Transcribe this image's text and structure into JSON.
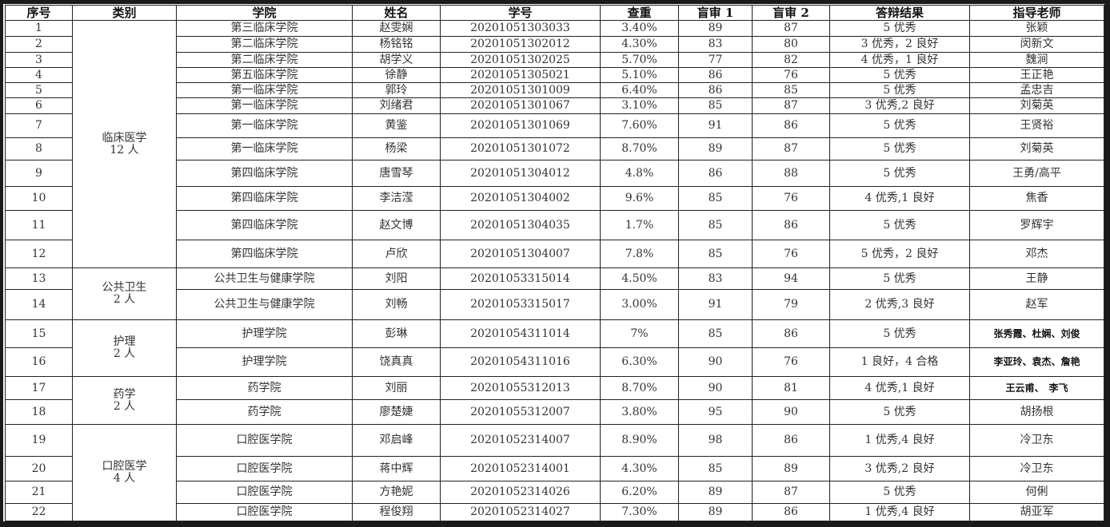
{
  "headers": [
    "序号",
    "类别",
    "学院",
    "姓名",
    "学号",
    "查重",
    "盲审 1",
    "盲审 2",
    "答辩结果",
    "指导老师"
  ],
  "groups": [
    {
      "name": "临床医学",
      "count": "12 人",
      "start": 0,
      "span": 12
    },
    {
      "name": "公共卫生",
      "count": "2 人",
      "start": 12,
      "span": 2
    },
    {
      "name": "护理",
      "count": "2 人",
      "start": 14,
      "span": 2
    },
    {
      "name": "药学",
      "count": "2 人",
      "start": 16,
      "span": 2
    },
    {
      "name": "口腔医学",
      "count": "4 人",
      "start": 18,
      "span": 4
    }
  ],
  "rows": [
    [
      "1",
      "第三临床学院",
      "赵雯娴",
      "20201051303033",
      "3.40%",
      "89",
      "87",
      "5 优秀",
      "张颖"
    ],
    [
      "2",
      "第二临床学院",
      "杨铭铭",
      "20201051302012",
      "4.30%",
      "83",
      "80",
      "3 优秀，2 良好",
      "闵新文"
    ],
    [
      "3",
      "第二临床学院",
      "胡学义",
      "20201051302025",
      "5.70%",
      "77",
      "82",
      "4 优秀，1 良好",
      "魏涧"
    ],
    [
      "4",
      "第五临床学院",
      "徐静",
      "20201051305021",
      "5.10%",
      "86",
      "76",
      "5 优秀",
      "王正艳"
    ],
    [
      "5",
      "第一临床学院",
      "郭玲",
      "20201051301009",
      "6.40%",
      "86",
      "85",
      "5 优秀",
      "孟忠吉"
    ],
    [
      "6",
      "第一临床学院",
      "刘绪君",
      "20201051301067",
      "3.10%",
      "85",
      "87",
      "3 优秀,2 良好",
      "刘菊英"
    ],
    [
      "7",
      "第一临床学院",
      "黄鉴",
      "20201051301069",
      "7.60%",
      "91",
      "86",
      "5 优秀",
      "王贤裕"
    ],
    [
      "8",
      "第一临床学院",
      "杨梁",
      "20201051301072",
      "8.70%",
      "89",
      "87",
      "5 优秀",
      "刘菊英"
    ],
    [
      "9",
      "第四临床学院",
      "唐雪琴",
      "20201051304012",
      "4.8%",
      "86",
      "88",
      "5 优秀",
      "王勇/高平"
    ],
    [
      "10",
      "第四临床学院",
      "李洁滢",
      "20201051304002",
      "9.6%",
      "85",
      "76",
      "4 优秀,1 良好",
      "焦香"
    ],
    [
      "11",
      "第四临床学院",
      "赵文博",
      "20201051304035",
      "1.7%",
      "85",
      "86",
      "5 优秀",
      "罗辉宇"
    ],
    [
      "12",
      "第四临床学院",
      "卢欣",
      "20201051304007",
      "7.8%",
      "85",
      "76",
      "5 优秀，2 良好",
      "邓杰"
    ],
    [
      "13",
      "公共卫生与健康学院",
      "刘阳",
      "20201053315014",
      "4.50%",
      "83",
      "94",
      "5 优秀",
      "王静"
    ],
    [
      "14",
      "公共卫生与健康学院",
      "刘畅",
      "20201053315017",
      "3.00%",
      "91",
      "79",
      "2 优秀,3 良好",
      "赵军"
    ],
    [
      "15",
      "护理学院",
      "彭琳",
      "20201054311014",
      "7%",
      "85",
      "86",
      "5 优秀",
      "张秀霞、杜娴、刘俊"
    ],
    [
      "16",
      "护理学院",
      "饶真真",
      "20201054311016",
      "6.30%",
      "90",
      "76",
      "1 良好，4 合格",
      "李亚玲、袁杰、詹艳"
    ],
    [
      "17",
      "药学院",
      "刘丽",
      "20201055312013",
      "8.70%",
      "90",
      "81",
      "4 优秀,1 良好",
      "王云甫、　李飞"
    ],
    [
      "18",
      "药学院",
      "廖楚婕",
      "20201055312007",
      "3.80%",
      "95",
      "90",
      "5 优秀",
      "胡扬根"
    ],
    [
      "19",
      "口腔医学院",
      "邓启峰",
      "20201052314007",
      "8.90%",
      "98",
      "86",
      "1 优秀,4 良好",
      "冷卫东"
    ],
    [
      "20",
      "口腔医学院",
      "蒋中辉",
      "20201052314001",
      "4.30%",
      "85",
      "89",
      "3 优秀,2 良好",
      "冷卫东"
    ],
    [
      "21",
      "口腔医学院",
      "方艳妮",
      "20201052314026",
      "6.20%",
      "89",
      "87",
      "5 优秀",
      "何俐"
    ],
    [
      "22",
      "口腔医学院",
      "程俊翔",
      "20201052314027",
      "7.30%",
      "89",
      "86",
      "1 优秀,4 良好",
      "胡亚军"
    ]
  ]
}
